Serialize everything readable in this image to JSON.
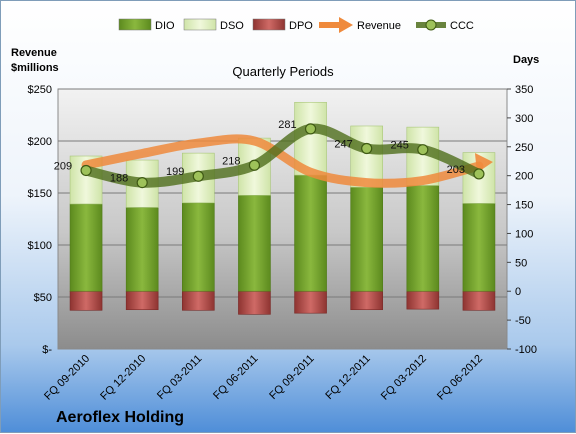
{
  "chart_data": {
    "type": "bar",
    "title": "Quarterly Periods",
    "company": "Aeroflex Holding",
    "left_axis_label": "Revenue\n$millions",
    "right_axis_label": "Days",
    "left_ylim": [
      0,
      250
    ],
    "left_ticks": [
      0,
      50,
      100,
      150,
      200,
      250
    ],
    "left_tick_labels": [
      "$-",
      "$50",
      "$100",
      "$150",
      "$200",
      "$250"
    ],
    "right_ylim": [
      -100,
      350
    ],
    "right_ticks": [
      -100,
      -50,
      0,
      50,
      100,
      150,
      200,
      250,
      300,
      350
    ],
    "categories": [
      "FQ 09-2010",
      "FQ 12-2010",
      "FQ 03-2011",
      "FQ 06-2011",
      "FQ 09-2011",
      "FQ 12-2011",
      "FQ 03-2012",
      "FQ 06-2012"
    ],
    "legend_position": "top",
    "grid": true,
    "series": [
      {
        "name": "DIO",
        "type": "stacked-bar",
        "axis": "right",
        "color": "#6f9a2b",
        "values": [
          151,
          145,
          153,
          166,
          201,
          180,
          183,
          152
        ]
      },
      {
        "name": "DSO",
        "type": "stacked-bar",
        "axis": "right",
        "color": "#d9ecb8",
        "values": [
          83,
          82,
          86,
          99,
          126,
          106,
          101,
          88
        ]
      },
      {
        "name": "DPO",
        "type": "bar-below-zero",
        "axis": "right",
        "color": "#c0504d",
        "values": [
          -33,
          -32,
          -33,
          -40,
          -38,
          -32,
          -31,
          -33
        ]
      },
      {
        "name": "Revenue",
        "type": "line",
        "axis": "left",
        "color": "#ef8a3c",
        "values": [
          177,
          188,
          198,
          200,
          170,
          160,
          162,
          176
        ]
      },
      {
        "name": "CCC",
        "type": "line",
        "axis": "right",
        "color": "#5d7d26",
        "values": [
          209,
          188,
          199,
          218,
          281,
          247,
          245,
          203
        ]
      }
    ],
    "ccc_labels": [
      "209",
      "188",
      "199",
      "218",
      "281",
      "247",
      "245",
      "203"
    ]
  }
}
